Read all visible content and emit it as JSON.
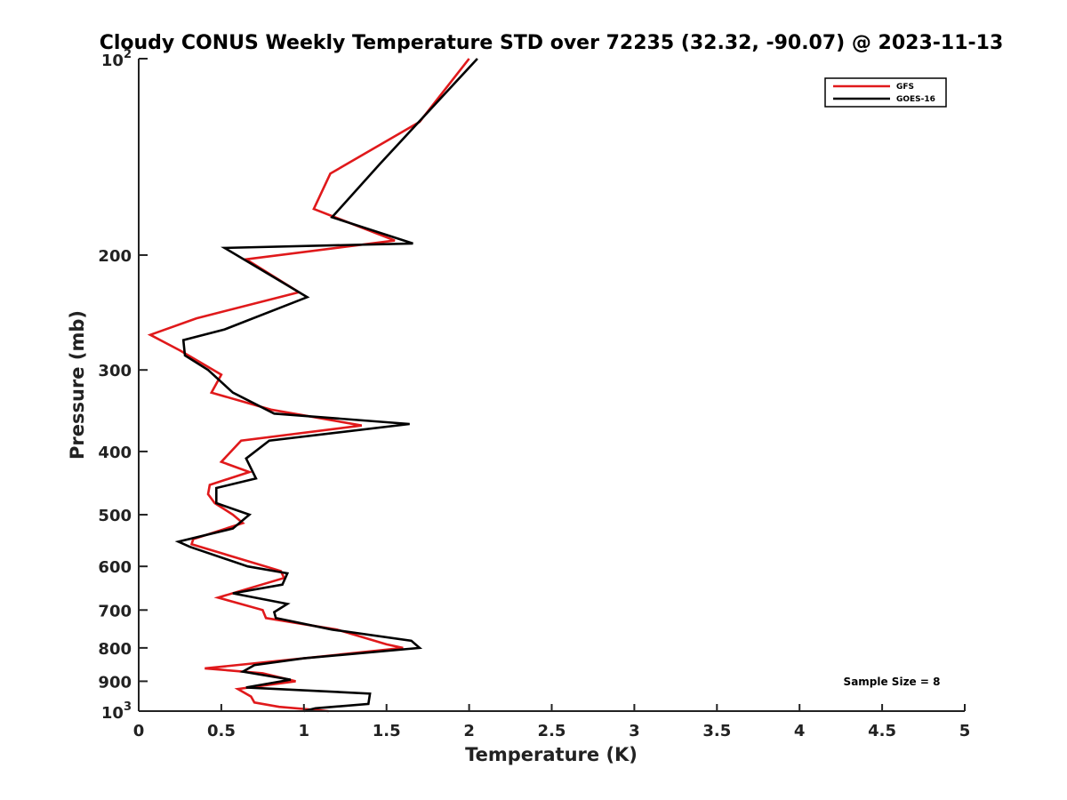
{
  "chart_data": {
    "type": "line",
    "title": "Cloudy CONUS Weekly Temperature STD over 72235 (32.32, -90.07) @ 2023-11-13",
    "xlabel": "Temperature (K)",
    "ylabel": "Pressure (mb)",
    "xlim": [
      0,
      5
    ],
    "ylim": [
      1000,
      100
    ],
    "yscale": "log",
    "xticks": [
      0,
      0.5,
      1,
      1.5,
      2,
      2.5,
      3,
      3.5,
      4,
      4.5,
      5
    ],
    "xtick_labels": [
      "0",
      "0.5",
      "1",
      "1.5",
      "2",
      "2.5",
      "3",
      "3.5",
      "4",
      "4.5",
      "5"
    ],
    "yticks": [
      {
        "value": 100,
        "base": "10",
        "exp": "2"
      },
      {
        "value": 200,
        "label": "200"
      },
      {
        "value": 300,
        "label": "300"
      },
      {
        "value": 400,
        "label": "400"
      },
      {
        "value": 500,
        "label": "500"
      },
      {
        "value": 600,
        "label": "600"
      },
      {
        "value": 700,
        "label": "700"
      },
      {
        "value": 800,
        "label": "800"
      },
      {
        "value": 900,
        "label": "900"
      },
      {
        "value": 1000,
        "base": "10",
        "exp": "3"
      }
    ],
    "legend_position": "top-right",
    "series": [
      {
        "name": "GFS",
        "color": "#e0191b",
        "points": [
          [
            2.0,
            100
          ],
          [
            1.7,
            125
          ],
          [
            1.16,
            150
          ],
          [
            1.06,
            170
          ],
          [
            1.55,
            190
          ],
          [
            0.65,
            203
          ],
          [
            0.97,
            228
          ],
          [
            0.35,
            250
          ],
          [
            0.07,
            265
          ],
          [
            0.25,
            280
          ],
          [
            0.5,
            305
          ],
          [
            0.44,
            325
          ],
          [
            0.8,
            345
          ],
          [
            1.35,
            365
          ],
          [
            0.62,
            385
          ],
          [
            0.5,
            415
          ],
          [
            0.67,
            430
          ],
          [
            0.43,
            450
          ],
          [
            0.42,
            465
          ],
          [
            0.46,
            480
          ],
          [
            0.57,
            500
          ],
          [
            0.63,
            515
          ],
          [
            0.33,
            545
          ],
          [
            0.32,
            555
          ],
          [
            0.86,
            610
          ],
          [
            0.88,
            625
          ],
          [
            0.48,
            670
          ],
          [
            0.75,
            700
          ],
          [
            0.77,
            720
          ],
          [
            1.2,
            750
          ],
          [
            1.5,
            790
          ],
          [
            1.6,
            800
          ],
          [
            1.0,
            830
          ],
          [
            0.4,
            860
          ],
          [
            0.75,
            875
          ],
          [
            0.95,
            900
          ],
          [
            0.6,
            925
          ],
          [
            0.68,
            950
          ],
          [
            0.7,
            970
          ],
          [
            0.85,
            985
          ],
          [
            1.15,
            1000
          ]
        ]
      },
      {
        "name": "GOES-16",
        "color": "#000000",
        "points": [
          [
            2.05,
            100
          ],
          [
            1.46,
            145
          ],
          [
            1.17,
            175
          ],
          [
            1.66,
            192
          ],
          [
            0.52,
            195
          ],
          [
            1.02,
            232
          ],
          [
            0.52,
            260
          ],
          [
            0.27,
            270
          ],
          [
            0.28,
            285
          ],
          [
            0.42,
            300
          ],
          [
            0.57,
            325
          ],
          [
            0.82,
            350
          ],
          [
            1.64,
            363
          ],
          [
            0.79,
            385
          ],
          [
            0.65,
            410
          ],
          [
            0.71,
            440
          ],
          [
            0.47,
            455
          ],
          [
            0.47,
            480
          ],
          [
            0.67,
            500
          ],
          [
            0.57,
            525
          ],
          [
            0.24,
            550
          ],
          [
            0.31,
            560
          ],
          [
            0.66,
            600
          ],
          [
            0.9,
            615
          ],
          [
            0.87,
            640
          ],
          [
            0.57,
            660
          ],
          [
            0.9,
            685
          ],
          [
            0.82,
            705
          ],
          [
            0.83,
            720
          ],
          [
            1.17,
            750
          ],
          [
            1.65,
            780
          ],
          [
            1.7,
            800
          ],
          [
            1.0,
            830
          ],
          [
            0.7,
            850
          ],
          [
            0.63,
            870
          ],
          [
            0.92,
            895
          ],
          [
            0.65,
            920
          ],
          [
            1.4,
            940
          ],
          [
            1.39,
            975
          ],
          [
            1.07,
            990
          ],
          [
            1.0,
            1000
          ]
        ]
      }
    ],
    "annotations": [
      {
        "text": "Sample Size = 8",
        "position": "bottom-right"
      }
    ]
  }
}
